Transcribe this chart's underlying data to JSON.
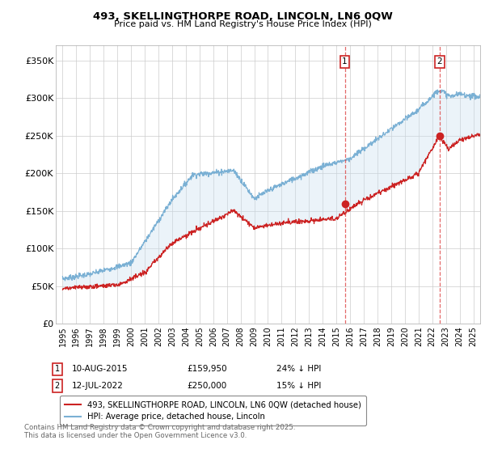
{
  "title": "493, SKELLINGTHORPE ROAD, LINCOLN, LN6 0QW",
  "subtitle": "Price paid vs. HM Land Registry's House Price Index (HPI)",
  "ylabel_ticks": [
    "£0",
    "£50K",
    "£100K",
    "£150K",
    "£200K",
    "£250K",
    "£300K",
    "£350K"
  ],
  "ytick_values": [
    0,
    50000,
    100000,
    150000,
    200000,
    250000,
    300000,
    350000
  ],
  "ylim": [
    0,
    370000
  ],
  "xlim_start": 1994.5,
  "xlim_end": 2025.5,
  "hpi_color": "#7ab0d4",
  "hpi_fill_color": "#c8dff0",
  "price_color": "#cc2222",
  "vline_color": "#dd4444",
  "background_color": "#ffffff",
  "grid_color": "#cccccc",
  "legend_label_price": "493, SKELLINGTHORPE ROAD, LINCOLN, LN6 0QW (detached house)",
  "legend_label_hpi": "HPI: Average price, detached house, Lincoln",
  "marker1_x": 2015.61,
  "marker1_y": 159950,
  "marker1_label": "1",
  "marker1_date": "10-AUG-2015",
  "marker1_price": "£159,950",
  "marker1_hpi": "24% ↓ HPI",
  "marker2_x": 2022.53,
  "marker2_y": 250000,
  "marker2_label": "2",
  "marker2_date": "12-JUL-2022",
  "marker2_price": "£250,000",
  "marker2_hpi": "15% ↓ HPI",
  "footnote": "Contains HM Land Registry data © Crown copyright and database right 2025.\nThis data is licensed under the Open Government Licence v3.0."
}
